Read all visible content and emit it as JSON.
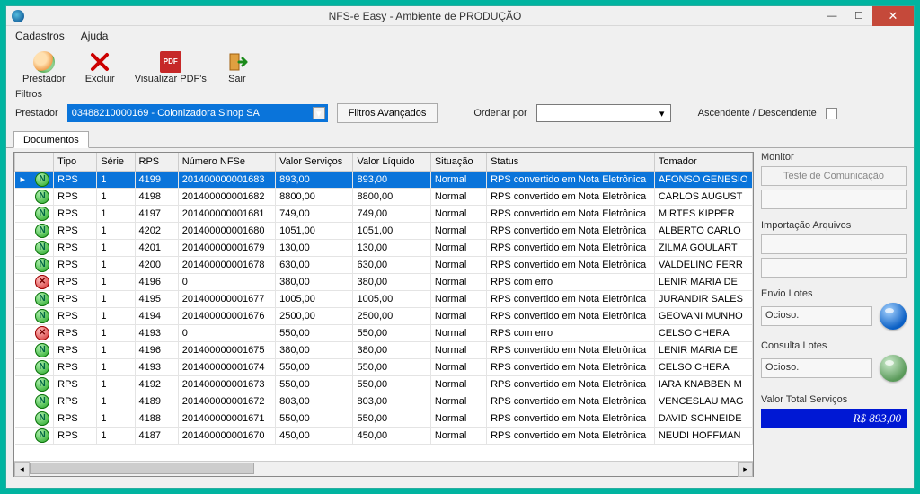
{
  "window": {
    "title": "NFS-e Easy - Ambiente de PRODUÇÃO"
  },
  "menu": {
    "cadastros": "Cadastros",
    "ajuda": "Ajuda"
  },
  "toolbar": {
    "prestador": "Prestador",
    "excluir": "Excluir",
    "pdf": "Visualizar PDF's",
    "sair": "Sair"
  },
  "filters": {
    "section_label": "Filtros",
    "prestador_label": "Prestador",
    "prestador_value": "03488210000169 - Colonizadora Sinop SA",
    "advanced_btn": "Filtros Avançados",
    "orderby_label": "Ordenar por",
    "asc_desc_label": "Ascendente / Descendente"
  },
  "tab": {
    "documentos": "Documentos"
  },
  "grid": {
    "columns": [
      "",
      "",
      "Tipo",
      "Série",
      "RPS",
      "Número NFSe",
      "Valor Serviços",
      "Valor Líquido",
      "Situação",
      "Status",
      "Tomador"
    ],
    "rows": [
      {
        "sel": true,
        "ic": "ok",
        "tipo": "RPS",
        "serie": "1",
        "rps": "4199",
        "nfse": "201400000001683",
        "vs": "893,00",
        "vl": "893,00",
        "sit": "Normal",
        "status": "RPS convertido em Nota Eletrônica",
        "tom": "AFONSO GENESIO"
      },
      {
        "sel": false,
        "ic": "ok",
        "tipo": "RPS",
        "serie": "1",
        "rps": "4198",
        "nfse": "201400000001682",
        "vs": "8800,00",
        "vl": "8800,00",
        "sit": "Normal",
        "status": "RPS convertido em Nota Eletrônica",
        "tom": "CARLOS AUGUST"
      },
      {
        "sel": false,
        "ic": "ok",
        "tipo": "RPS",
        "serie": "1",
        "rps": "4197",
        "nfse": "201400000001681",
        "vs": "749,00",
        "vl": "749,00",
        "sit": "Normal",
        "status": "RPS convertido em Nota Eletrônica",
        "tom": "MIRTES KIPPER"
      },
      {
        "sel": false,
        "ic": "ok",
        "tipo": "RPS",
        "serie": "1",
        "rps": "4202",
        "nfse": "201400000001680",
        "vs": "1051,00",
        "vl": "1051,00",
        "sit": "Normal",
        "status": "RPS convertido em Nota Eletrônica",
        "tom": "ALBERTO CARLO"
      },
      {
        "sel": false,
        "ic": "ok",
        "tipo": "RPS",
        "serie": "1",
        "rps": "4201",
        "nfse": "201400000001679",
        "vs": "130,00",
        "vl": "130,00",
        "sit": "Normal",
        "status": "RPS convertido em Nota Eletrônica",
        "tom": "ZILMA GOULART"
      },
      {
        "sel": false,
        "ic": "ok",
        "tipo": "RPS",
        "serie": "1",
        "rps": "4200",
        "nfse": "201400000001678",
        "vs": "630,00",
        "vl": "630,00",
        "sit": "Normal",
        "status": "RPS convertido em Nota Eletrônica",
        "tom": "VALDELINO FERR"
      },
      {
        "sel": false,
        "ic": "err",
        "tipo": "RPS",
        "serie": "1",
        "rps": "4196",
        "nfse": "0",
        "vs": "380,00",
        "vl": "380,00",
        "sit": "Normal",
        "status": "RPS com erro",
        "tom": "LENIR MARIA DE"
      },
      {
        "sel": false,
        "ic": "ok",
        "tipo": "RPS",
        "serie": "1",
        "rps": "4195",
        "nfse": "201400000001677",
        "vs": "1005,00",
        "vl": "1005,00",
        "sit": "Normal",
        "status": "RPS convertido em Nota Eletrônica",
        "tom": "JURANDIR SALES"
      },
      {
        "sel": false,
        "ic": "ok",
        "tipo": "RPS",
        "serie": "1",
        "rps": "4194",
        "nfse": "201400000001676",
        "vs": "2500,00",
        "vl": "2500,00",
        "sit": "Normal",
        "status": "RPS convertido em Nota Eletrônica",
        "tom": "GEOVANI MUNHO"
      },
      {
        "sel": false,
        "ic": "err",
        "tipo": "RPS",
        "serie": "1",
        "rps": "4193",
        "nfse": "0",
        "vs": "550,00",
        "vl": "550,00",
        "sit": "Normal",
        "status": "RPS com erro",
        "tom": "CELSO CHERA"
      },
      {
        "sel": false,
        "ic": "ok",
        "tipo": "RPS",
        "serie": "1",
        "rps": "4196",
        "nfse": "201400000001675",
        "vs": "380,00",
        "vl": "380,00",
        "sit": "Normal",
        "status": "RPS convertido em Nota Eletrônica",
        "tom": "LENIR MARIA DE"
      },
      {
        "sel": false,
        "ic": "ok",
        "tipo": "RPS",
        "serie": "1",
        "rps": "4193",
        "nfse": "201400000001674",
        "vs": "550,00",
        "vl": "550,00",
        "sit": "Normal",
        "status": "RPS convertido em Nota Eletrônica",
        "tom": "CELSO CHERA"
      },
      {
        "sel": false,
        "ic": "ok",
        "tipo": "RPS",
        "serie": "1",
        "rps": "4192",
        "nfse": "201400000001673",
        "vs": "550,00",
        "vl": "550,00",
        "sit": "Normal",
        "status": "RPS convertido em Nota Eletrônica",
        "tom": "IARA KNABBEN M"
      },
      {
        "sel": false,
        "ic": "ok",
        "tipo": "RPS",
        "serie": "1",
        "rps": "4189",
        "nfse": "201400000001672",
        "vs": "803,00",
        "vl": "803,00",
        "sit": "Normal",
        "status": "RPS convertido em Nota Eletrônica",
        "tom": "VENCESLAU MAG"
      },
      {
        "sel": false,
        "ic": "ok",
        "tipo": "RPS",
        "serie": "1",
        "rps": "4188",
        "nfse": "201400000001671",
        "vs": "550,00",
        "vl": "550,00",
        "sit": "Normal",
        "status": "RPS convertido em Nota Eletrônica",
        "tom": "DAVID SCHNEIDE"
      },
      {
        "sel": false,
        "ic": "ok",
        "tipo": "RPS",
        "serie": "1",
        "rps": "4187",
        "nfse": "201400000001670",
        "vs": "450,00",
        "vl": "450,00",
        "sit": "Normal",
        "status": "RPS convertido em Nota Eletrônica",
        "tom": "NEUDI HOFFMAN"
      }
    ]
  },
  "monitor": {
    "title": "Monitor",
    "test_btn": "Teste de Comunicação",
    "import_label": "Importação Arquivos",
    "envio_label": "Envio Lotes",
    "envio_status": "Ocioso.",
    "consulta_label": "Consulta Lotes",
    "consulta_status": "Ocioso.",
    "total_label": "Valor Total Serviços",
    "total_value": "R$ 893,00"
  },
  "colors": {
    "selection": "#0a74da",
    "window_bg": "#f0f0f0",
    "desktop": "#00b4a0",
    "close_btn": "#c5493a",
    "total_bg": "#0018d4"
  }
}
